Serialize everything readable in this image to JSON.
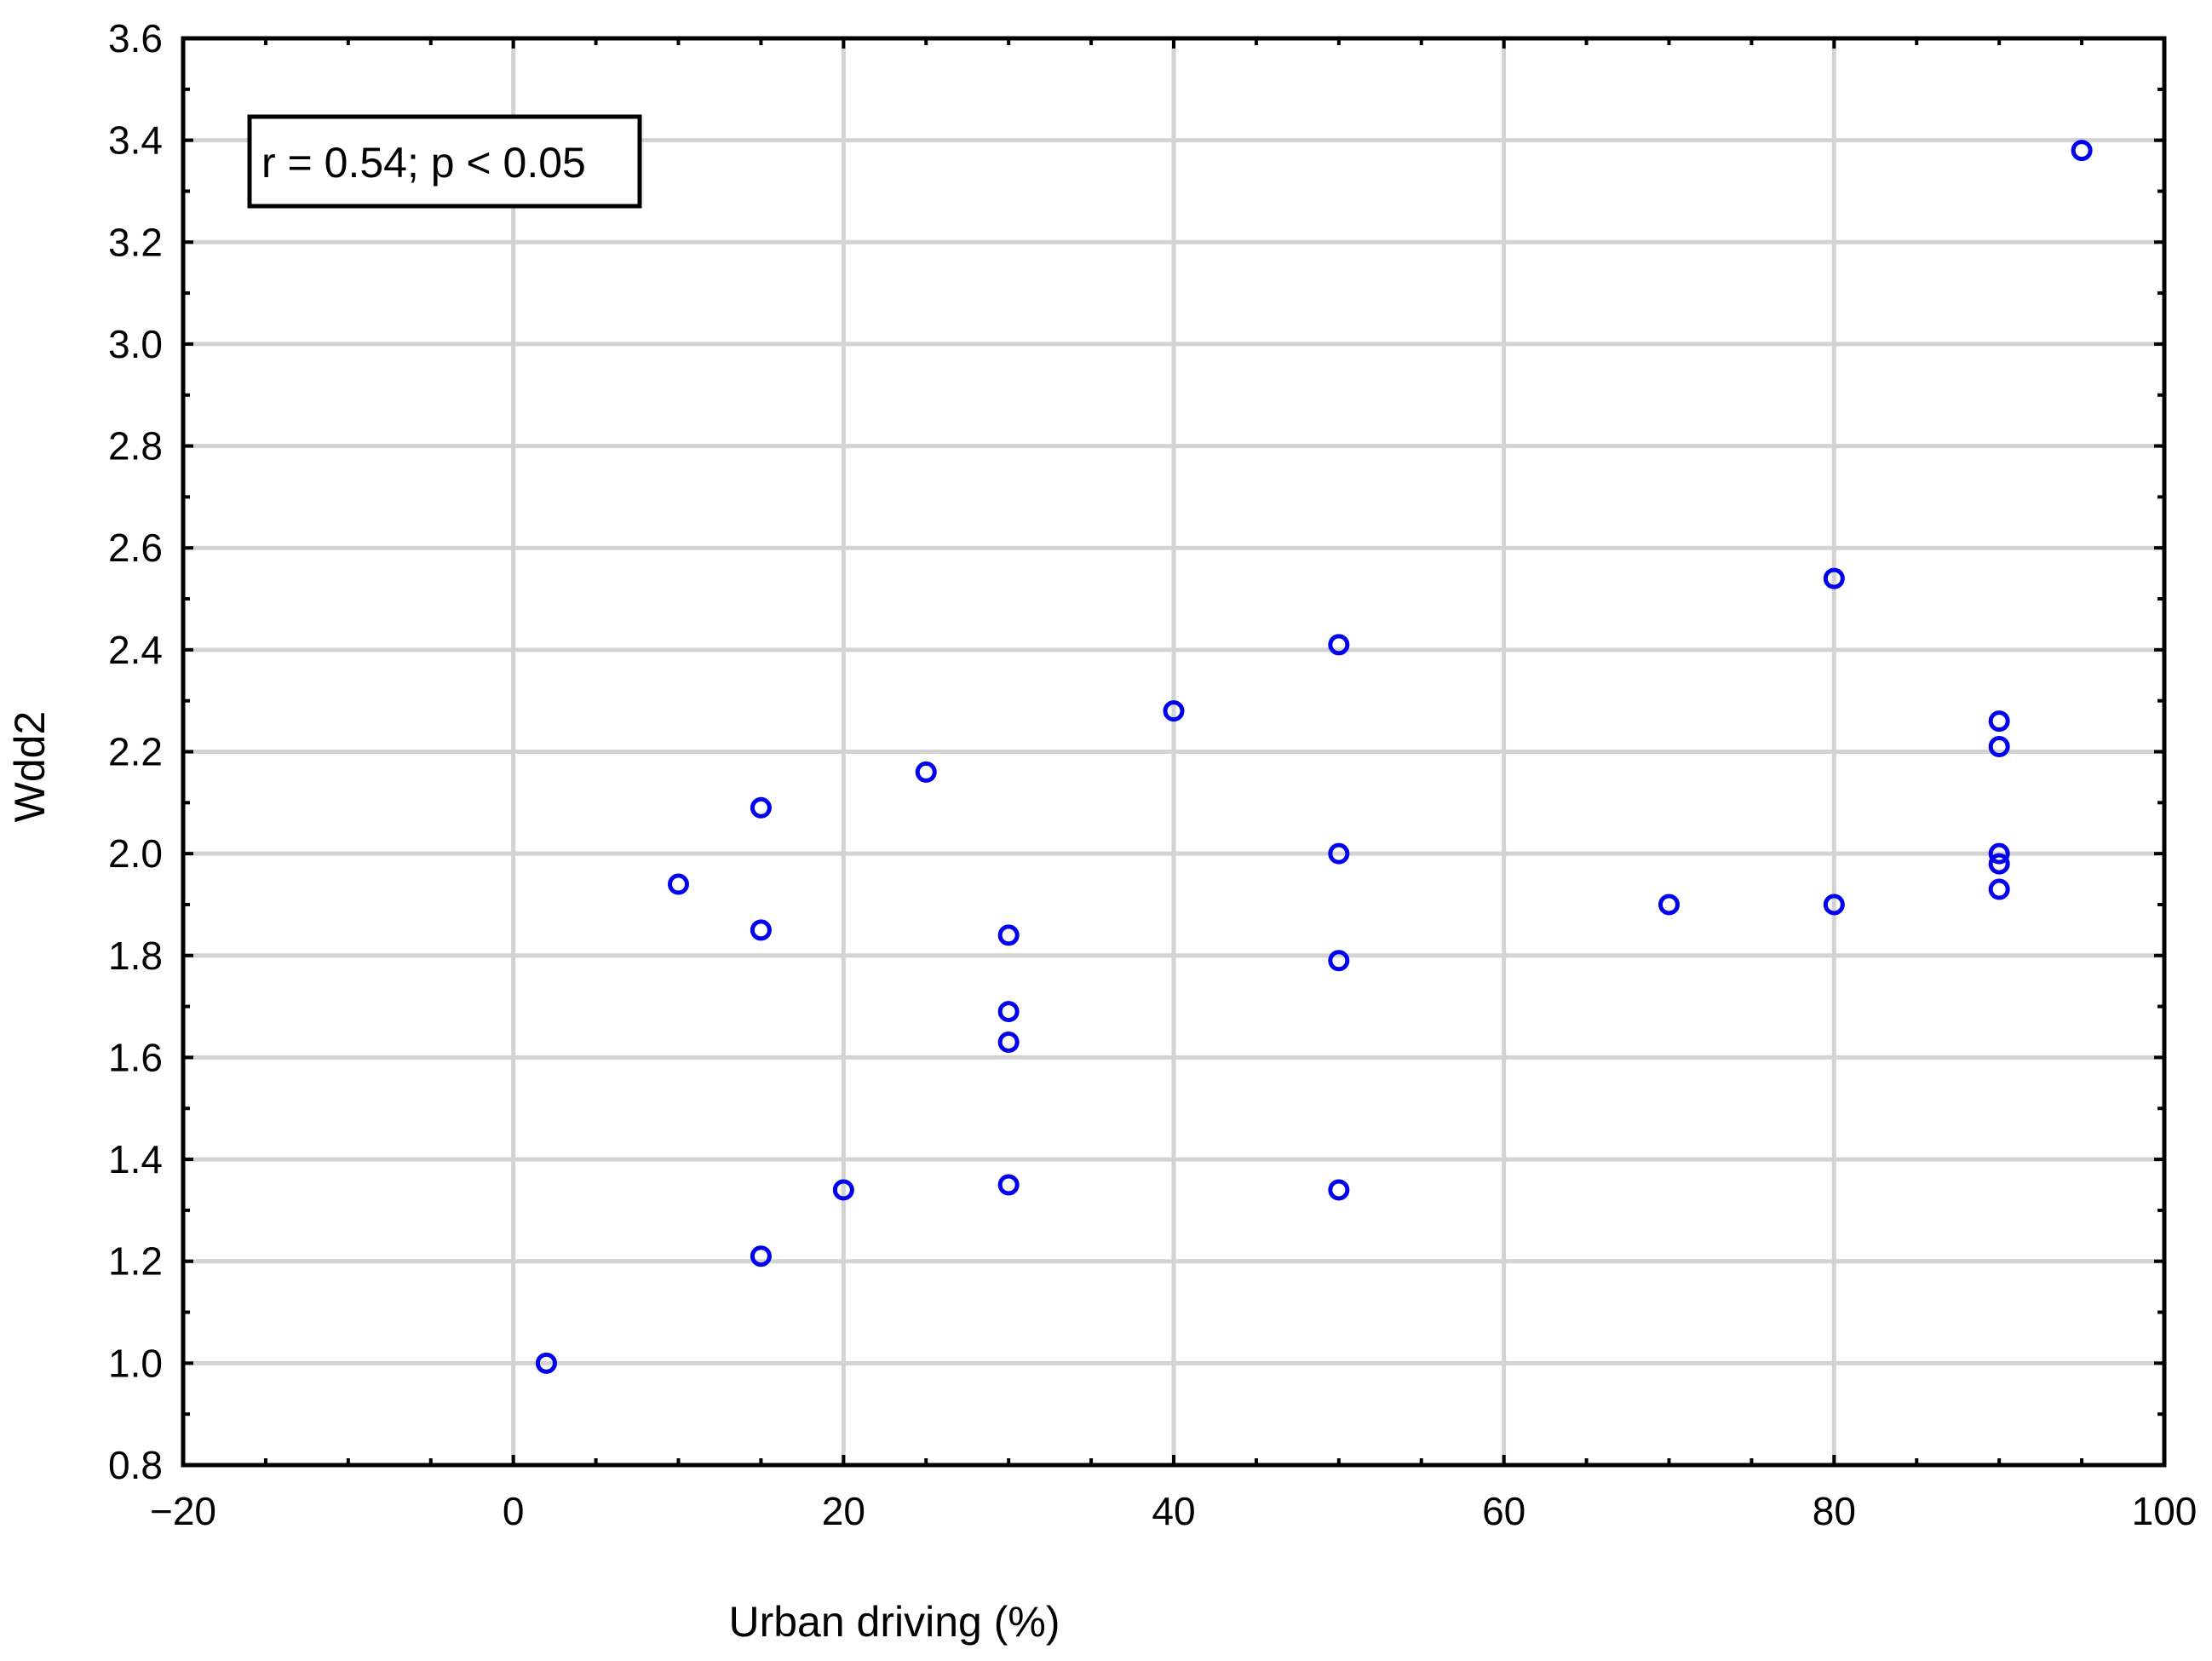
{
  "chart_data": {
    "type": "scatter",
    "title": "",
    "xlabel": "Urban driving (%)",
    "ylabel": "Wdd2",
    "xlim": [
      -20,
      100
    ],
    "ylim": [
      0.8,
      3.6
    ],
    "x_ticks": [
      -20,
      0,
      20,
      40,
      60,
      80,
      100
    ],
    "x_tick_labels": [
      "−20",
      "0",
      "20",
      "40",
      "60",
      "80",
      "100"
    ],
    "y_ticks": [
      0.8,
      1.0,
      1.2,
      1.4,
      1.6,
      1.8,
      2.0,
      2.2,
      2.4,
      2.6,
      2.8,
      3.0,
      3.2,
      3.4,
      3.6
    ],
    "y_tick_labels": [
      "0.8",
      "1.0",
      "1.2",
      "1.4",
      "1.6",
      "1.8",
      "2.0",
      "2.2",
      "2.4",
      "2.6",
      "2.8",
      "3.0",
      "3.2",
      "3.4",
      "3.6"
    ],
    "grid": true,
    "annotation": "r = 0.54; p < 0.05",
    "marker_color": "#0000ee",
    "grid_color": "#d3d3d3",
    "points": [
      {
        "x": 2,
        "y": 1.0
      },
      {
        "x": 10,
        "y": 1.94
      },
      {
        "x": 15,
        "y": 2.09
      },
      {
        "x": 15,
        "y": 1.85
      },
      {
        "x": 15,
        "y": 1.21
      },
      {
        "x": 20,
        "y": 1.34
      },
      {
        "x": 25,
        "y": 2.16
      },
      {
        "x": 30,
        "y": 1.84
      },
      {
        "x": 30,
        "y": 1.69
      },
      {
        "x": 30,
        "y": 1.63
      },
      {
        "x": 30,
        "y": 1.35
      },
      {
        "x": 40,
        "y": 2.28
      },
      {
        "x": 50,
        "y": 2.41
      },
      {
        "x": 50,
        "y": 2.0
      },
      {
        "x": 50,
        "y": 1.79
      },
      {
        "x": 50,
        "y": 1.34
      },
      {
        "x": 70,
        "y": 1.9
      },
      {
        "x": 80,
        "y": 2.54
      },
      {
        "x": 80,
        "y": 1.9
      },
      {
        "x": 90,
        "y": 2.26
      },
      {
        "x": 90,
        "y": 2.21
      },
      {
        "x": 90,
        "y": 2.0
      },
      {
        "x": 90,
        "y": 1.98
      },
      {
        "x": 90,
        "y": 1.93
      },
      {
        "x": 95,
        "y": 3.38
      }
    ]
  }
}
